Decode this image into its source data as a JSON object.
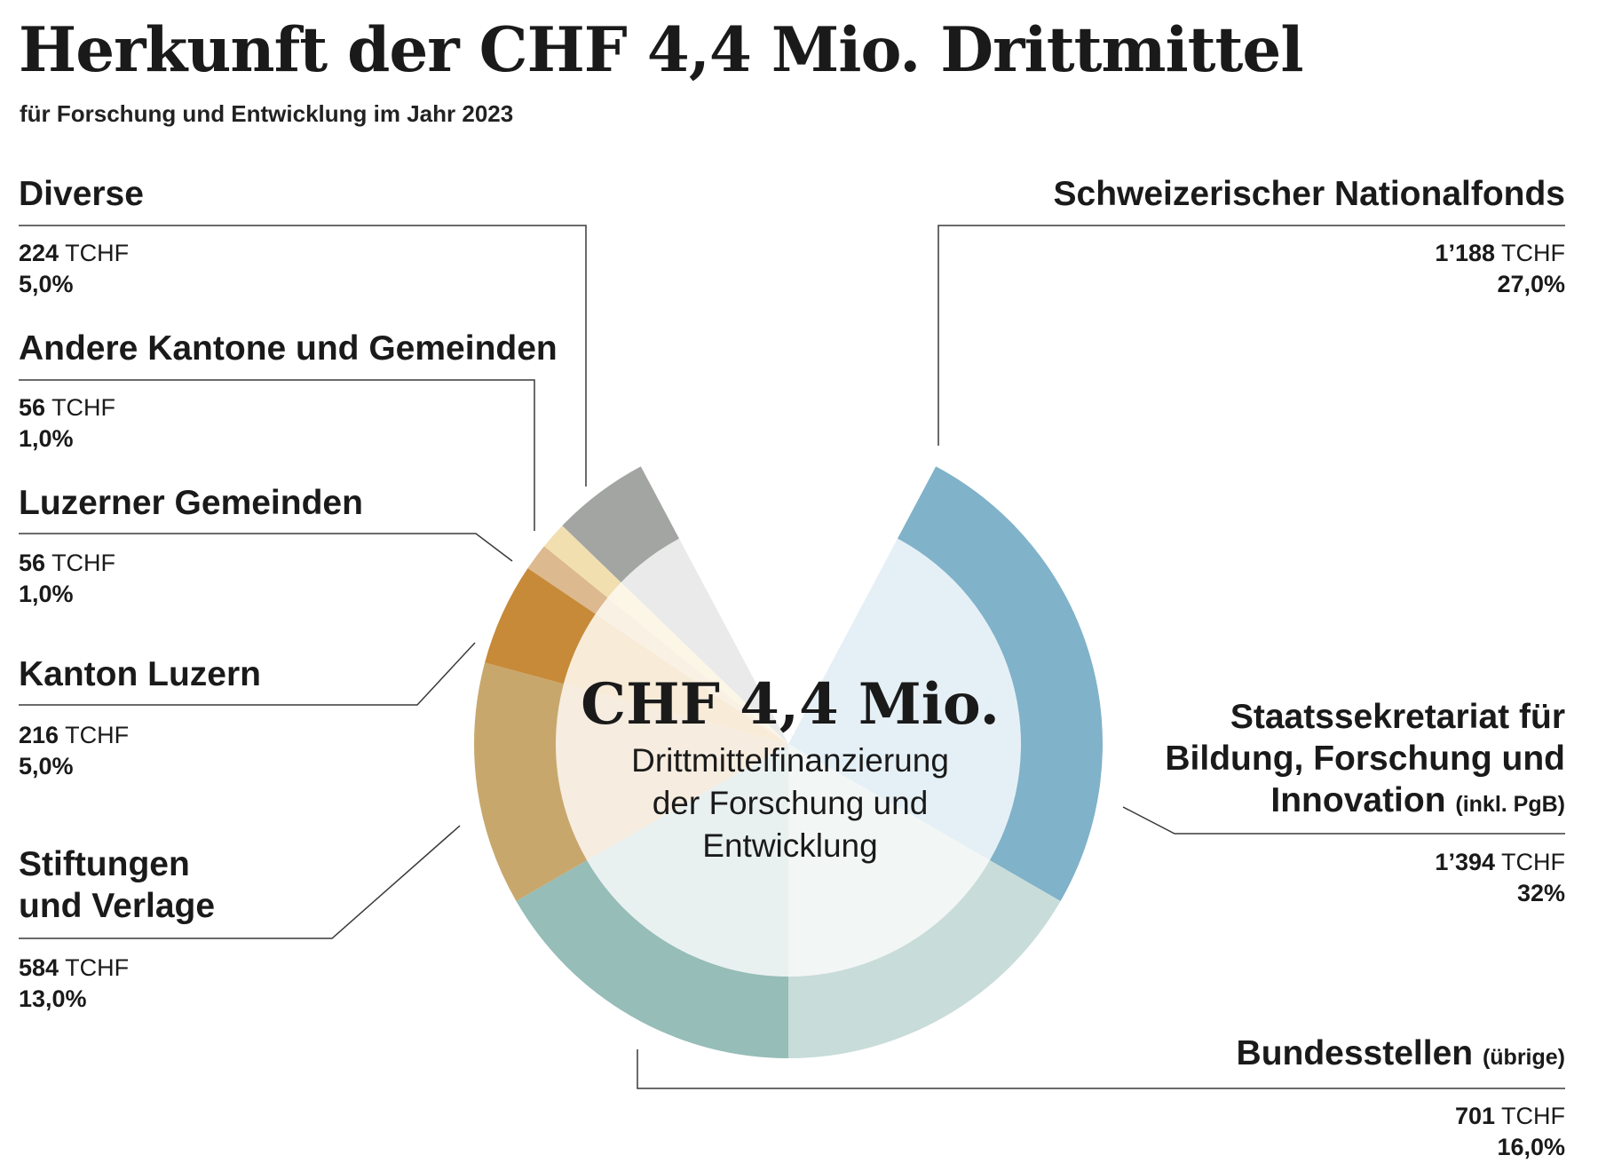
{
  "header": {
    "title": "Herkunft der CHF 4,4 Mio. Drittmittel",
    "subtitle": "für Forschung und Entwicklung im Jahr 2023"
  },
  "center": {
    "value": "CHF 4,4 Mio.",
    "caption_lines": [
      "Drittmittelfinanzierung",
      "der Forschung und",
      "Entwicklung"
    ]
  },
  "labels": {
    "diverse": {
      "name": "Diverse",
      "value": "224",
      "unit": "TCHF",
      "percent": "5,0%"
    },
    "andere": {
      "name": "Andere Kantone und Gemeinden",
      "value": "56",
      "unit": "TCHF",
      "percent": "1,0%"
    },
    "luzerner": {
      "name": "Luzerner Gemeinden",
      "value": "56",
      "unit": "TCHF",
      "percent": "1,0%"
    },
    "kanton": {
      "name": "Kanton Luzern",
      "value": "216",
      "unit": "TCHF",
      "percent": "5,0%"
    },
    "stiftungen": {
      "name_line1": "Stiftungen",
      "name_line2": "und Verlage",
      "value": "584",
      "unit": "TCHF",
      "percent": "13,0%"
    },
    "snf": {
      "name": "Schweizerischer Nationalfonds",
      "value": "1’188",
      "unit": "TCHF",
      "percent": "27,0%"
    },
    "sbfi": {
      "name_line1": "Staatssekretariat für",
      "name_line2": "Bildung, Forschung und",
      "name_line3": "Innovation",
      "name_note": "(inkl. PgB)",
      "value": "1’394",
      "unit": "TCHF",
      "percent": "32%"
    },
    "bund": {
      "name": "Bundesstellen",
      "name_note": "(übrige)",
      "value": "701",
      "unit": "TCHF",
      "percent": "16,0%"
    }
  },
  "chart_data": {
    "type": "pie",
    "variant": "donut",
    "unit": "TCHF",
    "total_label": "CHF 4,4 Mio.",
    "categories": [
      "Schweizerischer Nationalfonds",
      "Staatssekretariat für Bildung, Forschung und Innovation (inkl. PgB)",
      "Bundesstellen (übrige)",
      "Stiftungen und Verlage",
      "Kanton Luzern",
      "Luzerner Gemeinden",
      "Andere Kantone und Gemeinden",
      "Diverse"
    ],
    "values": [
      1188,
      1394,
      701,
      584,
      216,
      56,
      56,
      224
    ],
    "percent_labels": [
      "27,0%",
      "32%",
      "16,0%",
      "13,0%",
      "5,0%",
      "1,0%",
      "1,0%",
      "5,0%"
    ],
    "slice_angles_deg": [
      {
        "start": 28,
        "end": 120
      },
      {
        "start": 120,
        "end": 180
      },
      {
        "start": 180,
        "end": 240
      },
      {
        "start": 240,
        "end": 285
      },
      {
        "start": 285,
        "end": 304
      },
      {
        "start": 304,
        "end": 309
      },
      {
        "start": 309,
        "end": 314
      },
      {
        "start": 314,
        "end": 332
      }
    ],
    "colors": [
      "#80b2c9",
      "#c8dcd9",
      "#96bdb8",
      "#c8a76d",
      "#c78a38",
      "#dcb98e",
      "#f1dfb0",
      "#a3a5a2"
    ],
    "inner_colors": [
      "#e5f0f6",
      "#f2f6f5",
      "#e9f1f0",
      "#f6ecdf",
      "#f8ecd9",
      "#faf1e5",
      "#fcf6e6",
      "#eaeaea"
    ],
    "start_angle": "top",
    "direction": "clockwise",
    "legend": "none"
  }
}
